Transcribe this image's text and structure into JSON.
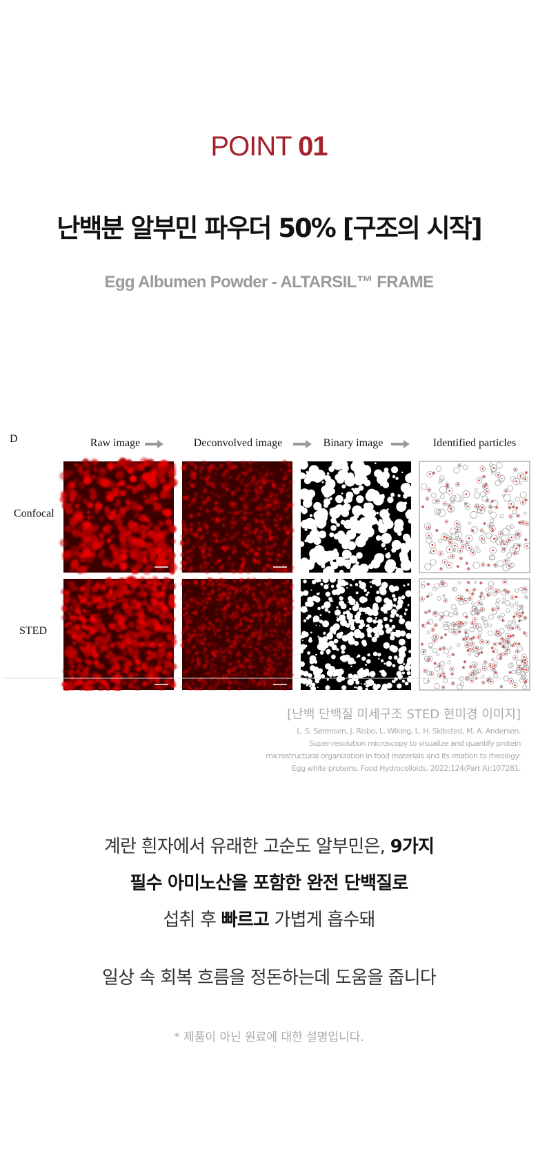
{
  "header": {
    "point_label": "POINT",
    "point_number": "01",
    "title": "난백분 알부민 파우더 50% [구조의 시작]",
    "subtitle": "Egg Albumen Powder - ALTARSIL™ FRAME"
  },
  "figure": {
    "panel_label": "D",
    "columns": [
      "Raw image",
      "Deconvolved image",
      "Binary image",
      "Identified particles"
    ],
    "rows": [
      "Confocal",
      "STED"
    ],
    "caption": "[난백 단백질 미세구조 STED 현미경 이미지]",
    "citation": [
      "L. S. Sørensen, J. Risbo, L. Wiking, L. H. Skibsted, M. A. Andersen.",
      "Super-resolution microscopy to visualize and quantify protein",
      "microstructural organization in food materials and its relation to rheology:",
      "Egg white proteins.  Food Hydrocolloids. 2022;124(Part A):107281."
    ]
  },
  "body": {
    "lines": [
      [
        {
          "text": "계란 흰자에서 유래한 고순도 알부민은, "
        },
        {
          "text": "9가지",
          "bold": true
        }
      ],
      [
        {
          "text": "필수 아미노산을 포함한 완전 단백질로",
          "bold": true
        }
      ],
      [
        {
          "text": "섭취 후 "
        },
        {
          "text": "빠르고",
          "bold": true
        },
        {
          "text": " 가볍게 흡수돼"
        }
      ]
    ],
    "closing": "일상 속 회복 흐름을 정돈하는데 도움을 줍니다",
    "note": "* 제품이 아닌 원료에 대한 설명입니다."
  }
}
